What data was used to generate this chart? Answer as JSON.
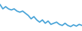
{
  "values": [
    12,
    10,
    11,
    10,
    9.5,
    10,
    9,
    8.5,
    9,
    8,
    7,
    5.5,
    6.5,
    5,
    4,
    5,
    3.5,
    4.5,
    3,
    3.5,
    4,
    3,
    2.5,
    3.5,
    2.5,
    2,
    2.8,
    2.2,
    3,
    2.5
  ],
  "line_color": "#4da6d9",
  "background_color": "#ffffff",
  "linewidth": 1.4,
  "ylim": [
    0,
    14
  ],
  "xlim": [
    0,
    29
  ]
}
